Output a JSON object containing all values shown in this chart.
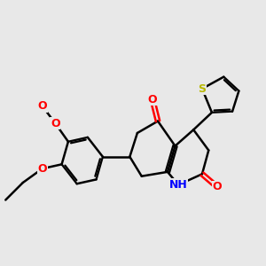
{
  "bg_color": "#e8e8e8",
  "bond_lw": 1.8,
  "font_size": 10,
  "colors": {
    "S": "#b8b800",
    "O": "#ff0000",
    "N": "#0000ff",
    "C": "#000000"
  },
  "figsize": [
    3.0,
    3.0
  ],
  "dpi": 100
}
